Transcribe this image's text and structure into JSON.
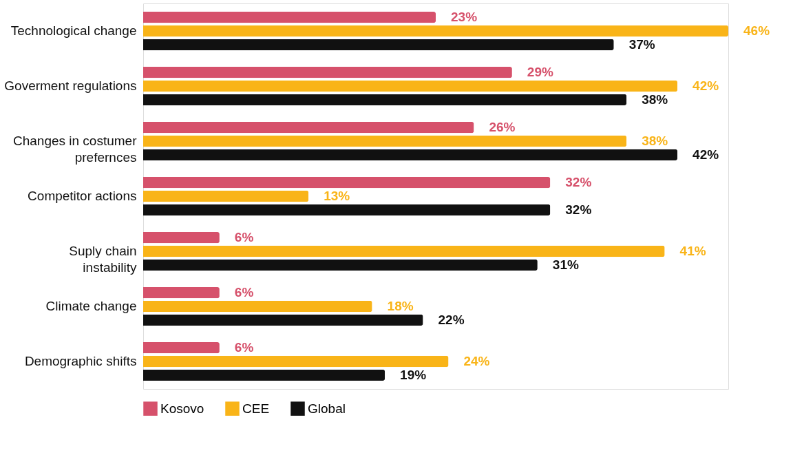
{
  "chart_data": {
    "type": "bar",
    "orientation": "horizontal",
    "categories": [
      "Technological change",
      "Goverment regulations",
      "Changes in costumer prefernces",
      "Competitor actions",
      "Suply chain instability",
      "Climate change",
      "Demographic shifts"
    ],
    "series": [
      {
        "name": "Kosovo",
        "color": "#d6516b",
        "values": [
          23,
          29,
          26,
          32,
          6,
          6,
          6
        ],
        "value_labels": [
          "23%",
          "29%",
          "26%",
          "32%",
          "6%",
          "6%",
          "6%"
        ]
      },
      {
        "name": "CEE",
        "color": "#f9b418",
        "values": [
          46,
          42,
          38,
          13,
          41,
          18,
          24
        ],
        "value_labels": [
          "46%",
          "42%",
          "38%",
          "13%",
          "41%",
          "18%",
          "24%"
        ]
      },
      {
        "name": "Global",
        "color": "#111111",
        "values": [
          37,
          38,
          42,
          32,
          31,
          22,
          19
        ],
        "value_labels": [
          "37%",
          "38%",
          "42%",
          "32%",
          "31%",
          "22%",
          "19%"
        ]
      }
    ],
    "legend": "bottom",
    "grid": false,
    "tick_labels": "y"
  }
}
